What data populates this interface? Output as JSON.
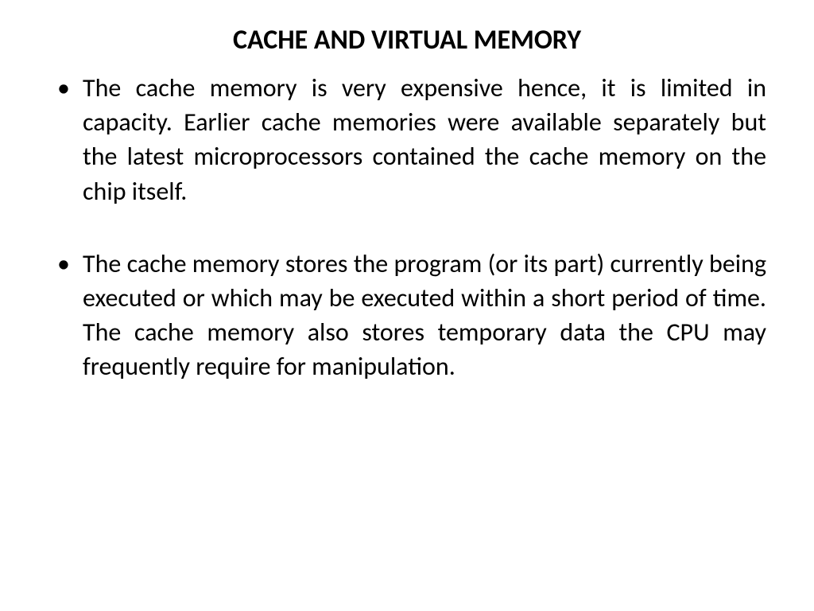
{
  "title": "CACHE AND VIRTUAL MEMORY",
  "bullets": [
    "The cache memory is very expensive hence, it is limited in capacity. Earlier cache memories were available separately but the latest microprocessors contained the cache memory on the chip itself.",
    "The cache memory stores the program (or its part) currently being executed or which may be executed within a short period of time. The  cache memory also stores temporary data the CPU may frequently require for manipulation."
  ],
  "styling": {
    "background_color": "#ffffff",
    "text_color": "#000000",
    "title_fontsize": 34,
    "title_fontweight": "bold",
    "body_fontsize": 32,
    "font_family": "Calibri",
    "text_align_body": "justify",
    "text_align_title": "center"
  }
}
